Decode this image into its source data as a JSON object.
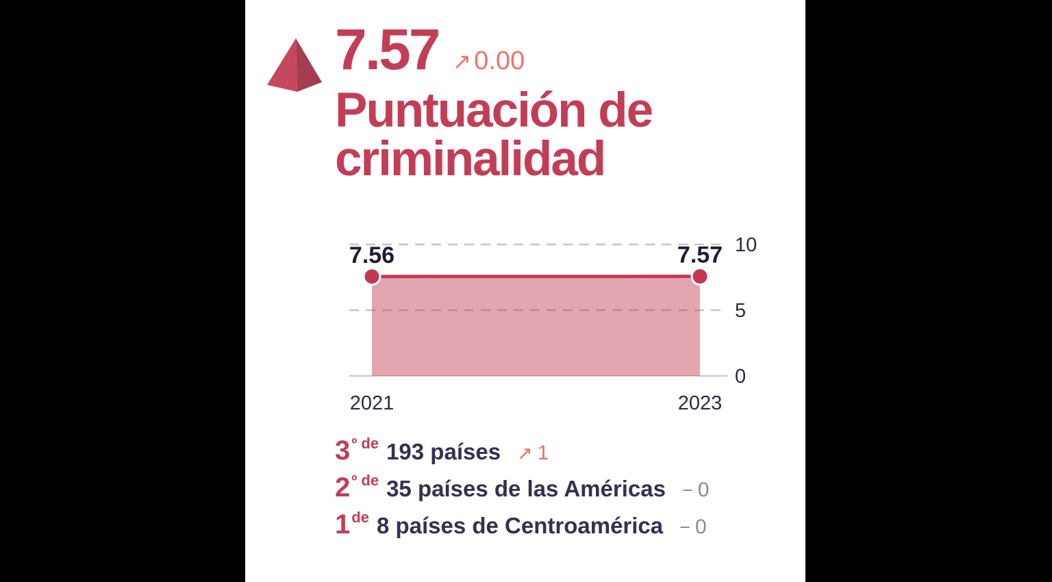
{
  "colors": {
    "accent_crimson": "#c23e56",
    "trend_up_salmon": "#ec7062",
    "trend_neutral_gray": "#8b8b8b",
    "text_navy": "#36304f",
    "pyramid_left_face": "#c4485e",
    "pyramid_right_face": "#a53c51",
    "panel_background": "#ffffff",
    "page_background": "#000000"
  },
  "icons": {
    "score_marker": "pyramid-icon",
    "trend_up": "arrow-up-right-icon",
    "trend_neutral": "minus-icon"
  },
  "header": {
    "score": "7.57",
    "trend_arrow": "↗",
    "trend_value": "0.00",
    "title_line1": "Puntuación de",
    "title_line2": "criminalidad"
  },
  "chart_data": {
    "type": "area",
    "title": "Puntuación de criminalidad 2021–2023",
    "x": [
      2021,
      2023
    ],
    "values": [
      7.56,
      7.57
    ],
    "point_labels": [
      "7.56",
      "7.57"
    ],
    "x_tick_labels": [
      "2021",
      "2023"
    ],
    "y_ticks": [
      0,
      5,
      10
    ],
    "ylim": [
      0,
      10
    ],
    "grid": "horizontal dashed gridlines at 5 and 10, solid baseline at 0",
    "legend": "none",
    "y_axis_position": "right",
    "line_color": "#c23a52",
    "fill_color": "rgba(194,58,82,0.45)",
    "point_color": "#c23a52",
    "grid_color": "#c6c6c6",
    "axis_line_color": "#c9c9c9",
    "tick_color": "#2d2942",
    "point_label_color": "#211d33"
  },
  "rankings": [
    {
      "ordinal": "3",
      "ordinal_suffix": "º de",
      "label": "193 países",
      "trend_symbol": "↗",
      "trend_value": "1",
      "trend_direction": "up"
    },
    {
      "ordinal": "2",
      "ordinal_suffix": "º de",
      "label": "35 países de las Américas",
      "trend_symbol": "−",
      "trend_value": "0",
      "trend_direction": "neutral"
    },
    {
      "ordinal": "1",
      "ordinal_suffix": "de",
      "label": "8 países de Centroamérica",
      "trend_symbol": "−",
      "trend_value": "0",
      "trend_direction": "neutral"
    }
  ]
}
